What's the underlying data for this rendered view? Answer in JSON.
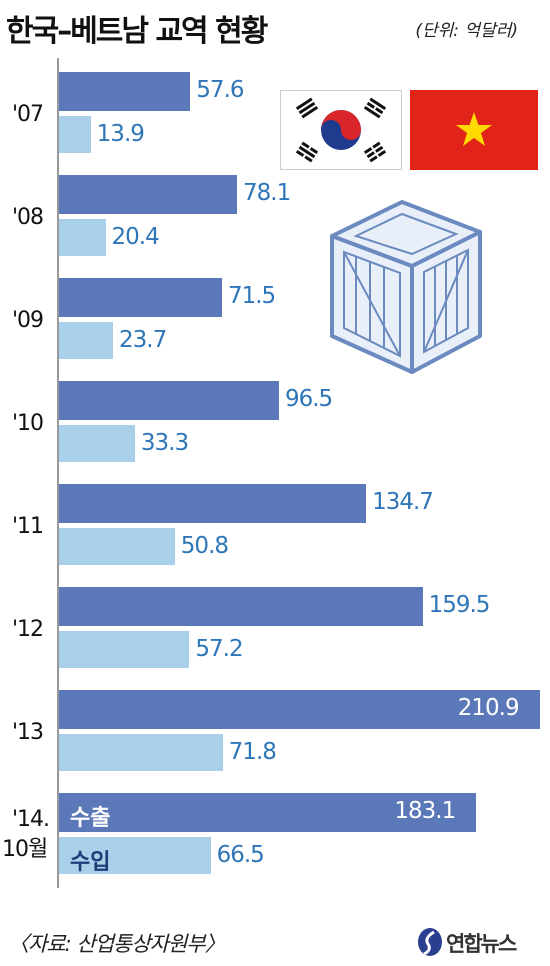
{
  "header": {
    "title": "한국–베트남 교역 현황",
    "unit": "(단위: 억달러)"
  },
  "chart_data": {
    "type": "bar",
    "orientation": "horizontal",
    "categories": [
      "'07",
      "'08",
      "'09",
      "'10",
      "'11",
      "'12",
      "'13",
      "'14.\n10월"
    ],
    "series": [
      {
        "name": "수출",
        "values": [
          57.6,
          78.1,
          71.5,
          96.5,
          134.7,
          159.5,
          210.9,
          183.1
        ],
        "color": "#5b79b8"
      },
      {
        "name": "수입",
        "values": [
          13.9,
          20.4,
          23.7,
          33.3,
          50.8,
          57.2,
          71.8,
          66.5
        ],
        "color": "#a9cfea"
      }
    ],
    "value_labels": {
      "export": [
        "57.6",
        "78.1",
        "71.5",
        "96.5",
        "134.7",
        "159.5",
        "210.9",
        "183.1"
      ],
      "import": [
        "13.9",
        "20.4",
        "23.7",
        "33.3",
        "50.8",
        "57.2",
        "71.8",
        "66.5"
      ]
    },
    "xlim": [
      0,
      211
    ],
    "grid": false,
    "legend": "inside last category bars"
  },
  "legend": {
    "export": "수출",
    "import": "수입"
  },
  "footer": {
    "source": "〈자료: 산업통상자원부〉",
    "logo_text": "연합뉴스"
  },
  "icons": [
    "korea-flag-icon",
    "vietnam-flag-icon",
    "crate-icon",
    "yonhap-logo-icon"
  ]
}
